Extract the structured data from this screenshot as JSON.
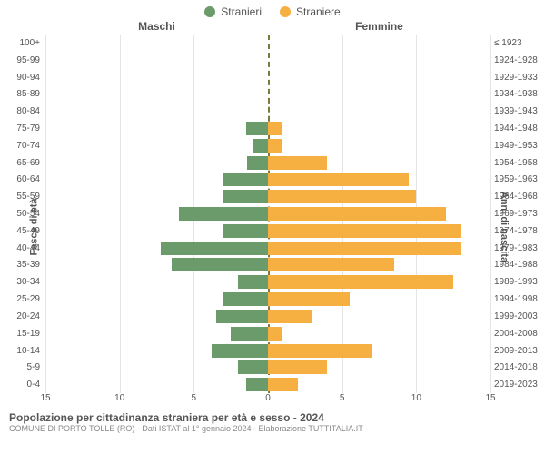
{
  "type": "population-pyramid",
  "legend": {
    "male_label": "Stranieri",
    "female_label": "Straniere",
    "male_color": "#6b9b6b",
    "female_color": "#f5b041"
  },
  "top_labels": {
    "left": "Maschi",
    "right": "Femmine"
  },
  "axis_labels": {
    "left": "Fasce di età",
    "right": "Anni di nascita"
  },
  "xlim": 15,
  "x_ticks": [
    15,
    10,
    5,
    0,
    5,
    10,
    15
  ],
  "grid_color": "#e5e5e5",
  "center_line_color": "#7a7a3a",
  "background_color": "#ffffff",
  "bar_height_pct": 80,
  "label_fontsize": 10,
  "rows": [
    {
      "age": "100+",
      "birth": "≤ 1923",
      "m": 0,
      "f": 0
    },
    {
      "age": "95-99",
      "birth": "1924-1928",
      "m": 0,
      "f": 0
    },
    {
      "age": "90-94",
      "birth": "1929-1933",
      "m": 0,
      "f": 0
    },
    {
      "age": "85-89",
      "birth": "1934-1938",
      "m": 0,
      "f": 0
    },
    {
      "age": "80-84",
      "birth": "1939-1943",
      "m": 0,
      "f": 0
    },
    {
      "age": "75-79",
      "birth": "1944-1948",
      "m": 1.5,
      "f": 1
    },
    {
      "age": "70-74",
      "birth": "1949-1953",
      "m": 1,
      "f": 1
    },
    {
      "age": "65-69",
      "birth": "1954-1958",
      "m": 1.4,
      "f": 4
    },
    {
      "age": "60-64",
      "birth": "1959-1963",
      "m": 3,
      "f": 9.5
    },
    {
      "age": "55-59",
      "birth": "1964-1968",
      "m": 3,
      "f": 10
    },
    {
      "age": "50-54",
      "birth": "1969-1973",
      "m": 6,
      "f": 12
    },
    {
      "age": "45-49",
      "birth": "1974-1978",
      "m": 3,
      "f": 13
    },
    {
      "age": "40-44",
      "birth": "1979-1983",
      "m": 7.2,
      "f": 13
    },
    {
      "age": "35-39",
      "birth": "1984-1988",
      "m": 6.5,
      "f": 8.5
    },
    {
      "age": "30-34",
      "birth": "1989-1993",
      "m": 2,
      "f": 12.5
    },
    {
      "age": "25-29",
      "birth": "1994-1998",
      "m": 3,
      "f": 5.5
    },
    {
      "age": "20-24",
      "birth": "1999-2003",
      "m": 3.5,
      "f": 3
    },
    {
      "age": "15-19",
      "birth": "2004-2008",
      "m": 2.5,
      "f": 1
    },
    {
      "age": "10-14",
      "birth": "2009-2013",
      "m": 3.8,
      "f": 7
    },
    {
      "age": "5-9",
      "birth": "2014-2018",
      "m": 2.0,
      "f": 4
    },
    {
      "age": "0-4",
      "birth": "2019-2023",
      "m": 1.5,
      "f": 2
    }
  ],
  "footer": {
    "title": "Popolazione per cittadinanza straniera per età e sesso - 2024",
    "subtitle": "COMUNE DI PORTO TOLLE (RO) - Dati ISTAT al 1° gennaio 2024 - Elaborazione TUTTITALIA.IT"
  }
}
